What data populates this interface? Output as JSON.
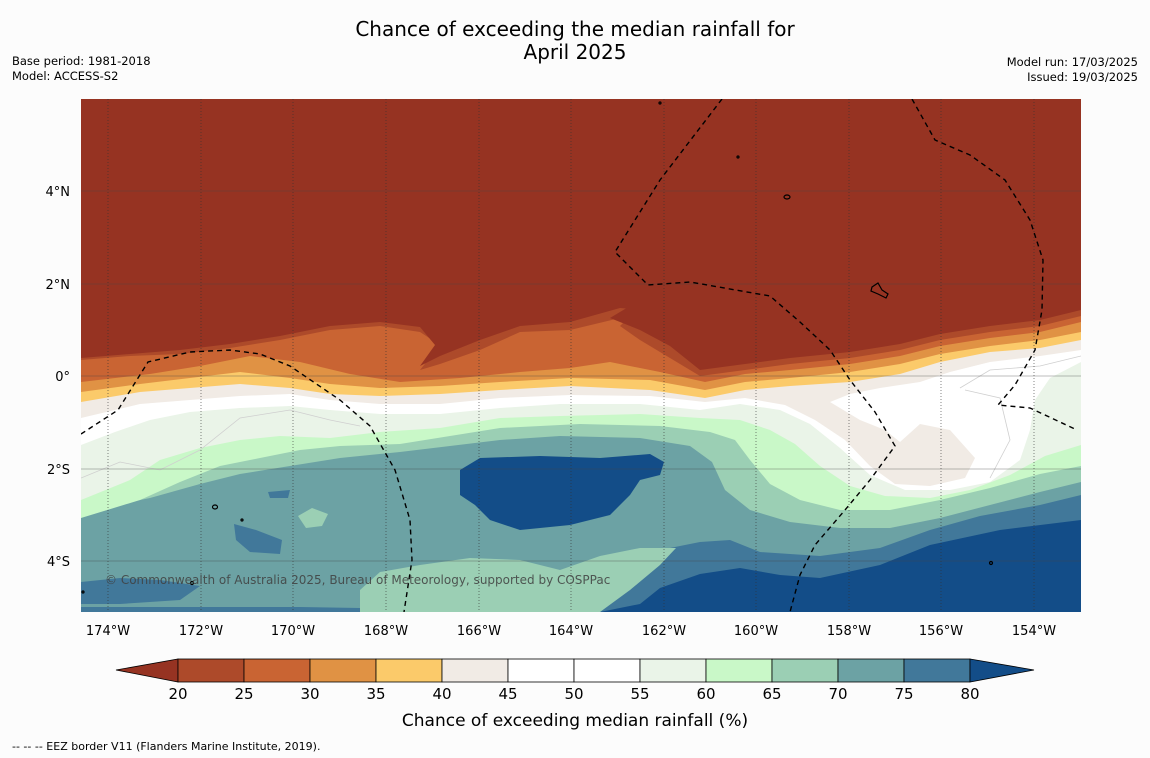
{
  "header": {
    "title_line1": "Chance of exceeding the median rainfall for",
    "title_line2": "April 2025",
    "base_period": "Base period: 1981-2018",
    "model": "Model: ACCESS-S2",
    "model_run": "Model run: 17/03/2025",
    "issued": "Issued: 19/03/2025"
  },
  "map": {
    "lat_labels": [
      "4°N",
      "2°N",
      "0°",
      "2°S",
      "4°S"
    ],
    "lon_labels": [
      "174°W",
      "172°W",
      "170°W",
      "168°W",
      "166°W",
      "164°W",
      "162°W",
      "160°W",
      "158°W",
      "156°W",
      "154°W"
    ],
    "copyright": "© Commonwealth of Australia 2025, Bureau of Meteorology, supported by COSPPac"
  },
  "colorbar": {
    "ticks": [
      "20",
      "25",
      "30",
      "35",
      "40",
      "45",
      "50",
      "55",
      "60",
      "65",
      "70",
      "75",
      "80"
    ],
    "label": "Chance of exceeding median rainfall (%)",
    "colors": {
      "below_20": "#963322",
      "20-25": "#ad4a2a",
      "25-30": "#c96433",
      "30-35": "#e09244",
      "35-40": "#fbca6a",
      "40-45": "#f1ebe5",
      "45-50": "#ffffff",
      "50-55": "#ffffff",
      "55-60": "#eaf4e8",
      "60-65": "#c9f8c8",
      "65-70": "#9bcfb4",
      "70-75": "#6ca2a4",
      "75-80": "#41789a",
      "above_80": "#134d88"
    }
  },
  "legend": {
    "eez_note": "--  --  -- EEZ border V11 (Flanders Marine Institute, 2019)."
  }
}
